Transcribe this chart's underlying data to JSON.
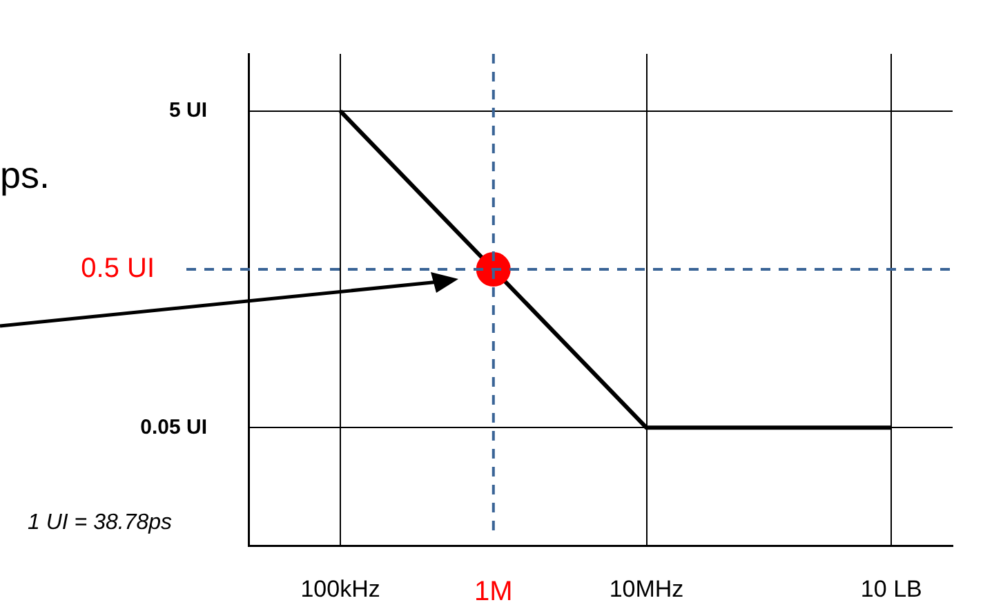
{
  "chart_data": {
    "type": "line",
    "log": "y",
    "grid": true,
    "legend": false,
    "categories": [
      null,
      null,
      null,
      "100kHz",
      null,
      null,
      null,
      null,
      "1M",
      null,
      null,
      null,
      null,
      "10MHz",
      null,
      null,
      null,
      null,
      null,
      null,
      null,
      "10 LB",
      null,
      null
    ],
    "ylim": [
      0.009,
      11.5
    ],
    "yticks": [
      {
        "value": 5,
        "label": "5 UI"
      },
      {
        "value": 0.05,
        "label": "0.05 UI"
      }
    ],
    "series": [
      {
        "values": [
          null,
          null,
          null,
          5,
          null,
          null,
          null,
          null,
          null,
          null,
          null,
          null,
          null,
          0.05,
          null,
          null,
          null,
          null,
          null,
          null,
          null,
          0.05,
          null,
          null
        ],
        "color": "#000000",
        "marker": "none",
        "line_style": "solid"
      },
      {
        "type": "scatter",
        "values": [
          null,
          null,
          null,
          null,
          null,
          null,
          null,
          null,
          0.5,
          null,
          null,
          null,
          null,
          null,
          null,
          null,
          null,
          null,
          null,
          null,
          null,
          null,
          null,
          null
        ],
        "color": "#ff0000",
        "marker": "circle"
      }
    ],
    "ref_lines": [
      {
        "axis": "y",
        "value": 0.5,
        "label": "0.5 UI",
        "color": "#3a6496",
        "line_style": "dashed"
      },
      {
        "axis": "x",
        "value": "1M",
        "color": "#3a6496",
        "line_style": "dashed"
      }
    ],
    "annotations": [
      "1 UI = 38.78ps",
      "ps."
    ]
  }
}
